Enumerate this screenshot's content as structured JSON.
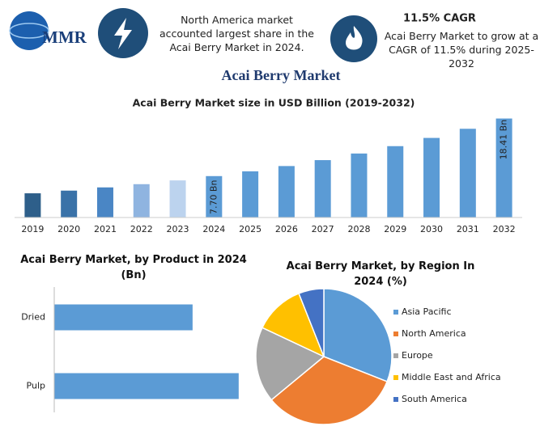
{
  "header": {
    "logo": "MMR",
    "fact": "North America market accounted largest share in the Acai Berry Market in 2024.",
    "cagr_title": "11.5% CAGR",
    "cagr_text": "Acai Berry Market to grow at a CAGR of 11.5% during 2025-2032"
  },
  "title": "Acai Berry Market",
  "chart_data": [
    {
      "type": "bar",
      "title": "Acai Berry Market size in USD Billion (2019-2032)",
      "categories": [
        "2019",
        "2020",
        "2021",
        "2022",
        "2023",
        "2024",
        "2025",
        "2026",
        "2027",
        "2028",
        "2029",
        "2030",
        "2031",
        "2032"
      ],
      "values": [
        4.5,
        5.0,
        5.6,
        6.2,
        6.9,
        7.7,
        8.59,
        9.57,
        10.67,
        11.9,
        13.27,
        14.8,
        16.5,
        18.41
      ],
      "value_labels": [
        null,
        null,
        null,
        null,
        null,
        "7.70 Bn",
        null,
        null,
        null,
        null,
        null,
        null,
        null,
        "18.41 Bn"
      ],
      "colors": [
        "#2e5f8a",
        "#3a72a8",
        "#4a86c5",
        "#8fb4e0",
        "#bcd3ee",
        "#5b9bd5",
        "#5b9bd5",
        "#5b9bd5",
        "#5b9bd5",
        "#5b9bd5",
        "#5b9bd5",
        "#5b9bd5",
        "#5b9bd5",
        "#5b9bd5"
      ],
      "ylim": [
        0,
        20
      ]
    },
    {
      "type": "hbar",
      "title": "Acai Berry Market, by Product in 2024 (Bn)",
      "categories": [
        "Dried",
        "Pulp"
      ],
      "values": [
        3.3,
        4.4
      ],
      "color": "#5b9bd5",
      "xlim": [
        0,
        4.5
      ]
    },
    {
      "type": "pie",
      "title": "Acai Berry Market, by Region In 2024 (%)",
      "categories": [
        "Asia Pacific",
        "North America",
        "Europe",
        "Middle East and Africa",
        "South America"
      ],
      "values": [
        31,
        33,
        18,
        12,
        6
      ],
      "colors": [
        "#5b9bd5",
        "#ed7d31",
        "#a5a5a5",
        "#ffc000",
        "#4472c4"
      ],
      "legend": "right"
    }
  ]
}
